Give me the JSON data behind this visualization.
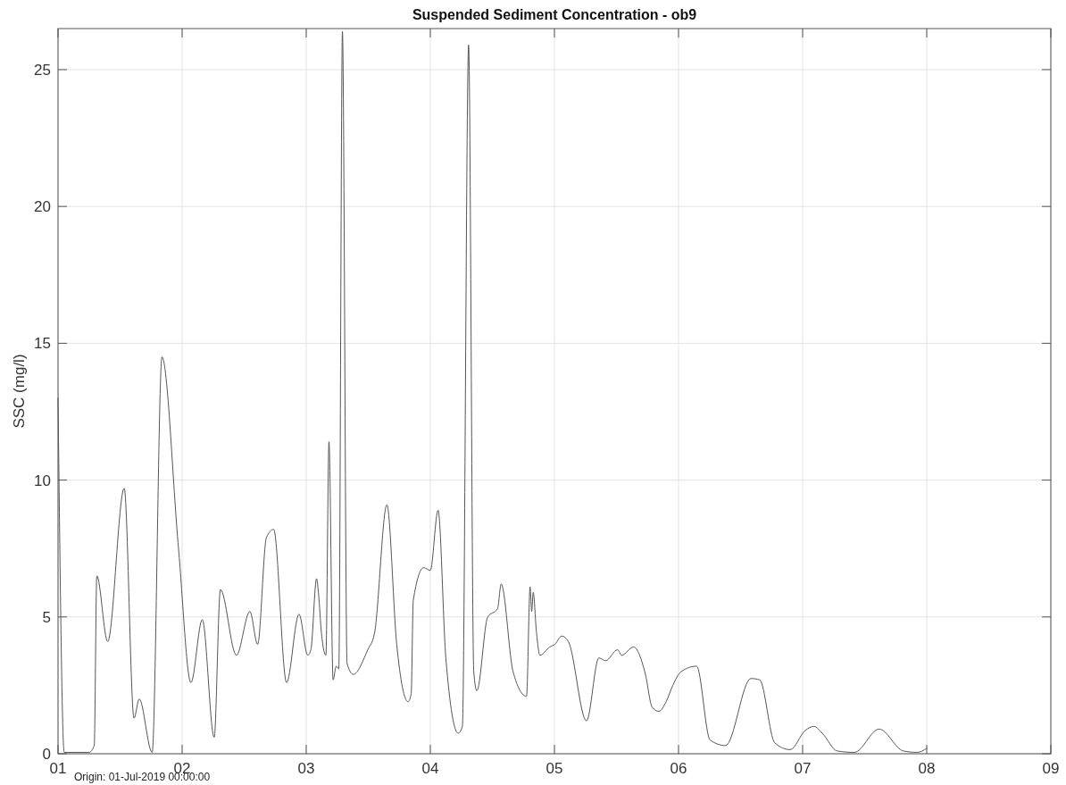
{
  "chart_data": {
    "type": "line",
    "title": "Suspended Sediment Concentration - ob9",
    "ylabel": "SSC (mg/l)",
    "annotations": [
      "Origin: 01-Jul-2019 00:00:00"
    ],
    "x": [
      "2019-07-01T00:00",
      "2019-07-01T01:12",
      "2019-07-01T06:00",
      "2019-07-01T07:00",
      "2019-07-01T07:30",
      "2019-07-01T09:36",
      "2019-07-01T12:48",
      "2019-07-01T14:42",
      "2019-07-01T15:42",
      "2019-07-01T18:12",
      "2019-07-01T20:06",
      "2019-07-01T23:18",
      "2019-07-02T01:42",
      "2019-07-02T03:54",
      "2019-07-02T06:12",
      "2019-07-02T07:24",
      "2019-07-02T10:30",
      "2019-07-02T13:06",
      "2019-07-02T14:36",
      "2019-07-02T16:18",
      "2019-07-02T17:42",
      "2019-07-02T20:12",
      "2019-07-02T22:36",
      "2019-07-03T00:18",
      "2019-07-03T00:54",
      "2019-07-03T02:00",
      "2019-07-03T02:24",
      "2019-07-03T02:54",
      "2019-07-03T03:48",
      "2019-07-03T04:24",
      "2019-07-03T05:12",
      "2019-07-03T05:48",
      "2019-07-03T06:18",
      "2019-07-03T07:00",
      "2019-07-03T07:54",
      "2019-07-03T09:06",
      "2019-07-03T11:54",
      "2019-07-03T13:12",
      "2019-07-03T15:36",
      "2019-07-03T17:30",
      "2019-07-03T19:42",
      "2019-07-03T20:18",
      "2019-07-03T20:42",
      "2019-07-03T22:42",
      "2019-07-04T00:00",
      "2019-07-04T01:30",
      "2019-07-04T03:00",
      "2019-07-04T05:24",
      "2019-07-04T06:12",
      "2019-07-04T07:24",
      "2019-07-04T08:24",
      "2019-07-04T09:00",
      "2019-07-04T11:06",
      "2019-07-04T13:00",
      "2019-07-04T13:42",
      "2019-07-04T16:00",
      "2019-07-04T18:36",
      "2019-07-04T19:18",
      "2019-07-04T19:36",
      "2019-07-04T19:54",
      "2019-07-04T20:30",
      "2019-07-04T21:12",
      "2019-07-04T23:06",
      "2019-07-05T00:06",
      "2019-07-05T01:24",
      "2019-07-05T02:42",
      "2019-07-05T06:12",
      "2019-07-05T08:36",
      "2019-07-05T09:54",
      "2019-07-05T12:12",
      "2019-07-05T13:00",
      "2019-07-05T15:18",
      "2019-07-05T17:36",
      "2019-07-05T18:54",
      "2019-07-05T20:12",
      "2019-07-05T21:36",
      "2019-07-05T22:54",
      "2019-07-06T00:30",
      "2019-07-06T03:30",
      "2019-07-06T06:06",
      "2019-07-06T09:06",
      "2019-07-06T14:00",
      "2019-07-06T15:42",
      "2019-07-06T18:36",
      "2019-07-06T21:36",
      "2019-07-07T00:30",
      "2019-07-07T02:12",
      "2019-07-07T03:48",
      "2019-07-07T06:42",
      "2019-07-07T10:00",
      "2019-07-07T14:48",
      "2019-07-07T19:30",
      "2019-07-07T22:12",
      "2019-07-08T00:00"
    ],
    "series": [
      {
        "color": "#555555",
        "values": [
          13,
          0.05,
          0.05,
          0.3,
          6.5,
          4.1,
          9.7,
          1.3,
          2.0,
          0.05,
          14.5,
          7.5,
          2.6,
          4.9,
          0.6,
          6.0,
          3.6,
          5.2,
          4.0,
          7.9,
          8.2,
          2.6,
          5.1,
          3.6,
          3.8,
          6.4,
          5.8,
          4.5,
          3.6,
          11.4,
          2.7,
          3.2,
          3.1,
          26.4,
          3.3,
          2.9,
          3.8,
          4.4,
          9.1,
          4.0,
          1.9,
          2.2,
          5.6,
          6.8,
          6.7,
          8.9,
          3.5,
          0.75,
          1.0,
          25.9,
          3.0,
          2.3,
          5.0,
          5.3,
          6.2,
          3.0,
          2.1,
          6.1,
          5.2,
          5.9,
          4.5,
          3.6,
          3.9,
          4.0,
          4.3,
          4.1,
          1.2,
          3.5,
          3.4,
          3.8,
          3.6,
          3.9,
          2.9,
          1.7,
          1.55,
          1.9,
          2.5,
          3.0,
          3.2,
          0.5,
          0.3,
          2.75,
          2.7,
          0.4,
          0.15,
          0.85,
          1.0,
          0.75,
          0.1,
          0.05,
          0.9,
          0.1,
          0.05,
          0.2
        ]
      }
    ],
    "xlim": [
      "2019-07-01",
      "2019-07-09"
    ],
    "xticks": [
      {
        "value": "2019-07-01",
        "label": "01"
      },
      {
        "value": "2019-07-02",
        "label": "02"
      },
      {
        "value": "2019-07-03",
        "label": "03"
      },
      {
        "value": "2019-07-04",
        "label": "04"
      },
      {
        "value": "2019-07-05",
        "label": "05"
      },
      {
        "value": "2019-07-06",
        "label": "06"
      },
      {
        "value": "2019-07-07",
        "label": "07"
      },
      {
        "value": "2019-07-08",
        "label": "08"
      },
      {
        "value": "2019-07-09",
        "label": "09"
      }
    ],
    "ylim": [
      0,
      26.5
    ],
    "yticks": [
      0,
      5,
      10,
      15,
      20,
      25
    ],
    "grid": true
  }
}
